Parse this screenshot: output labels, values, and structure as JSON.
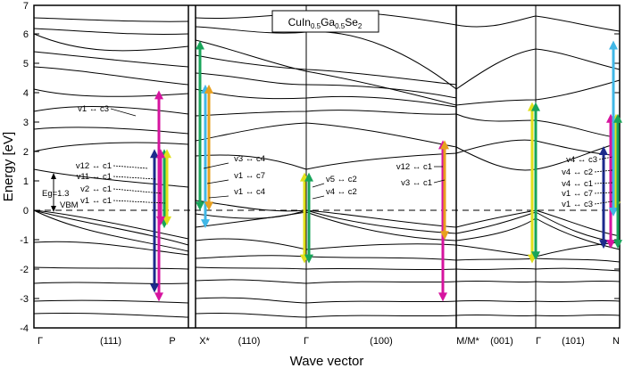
{
  "chart_data": {
    "type": "line",
    "title": "CuIn0.5Ga0.5Se2",
    "title_parts": {
      "a": "CuIn",
      "s1": "0.5",
      "b": "Ga",
      "s2": "0.5",
      "c": "Se",
      "s3": "2"
    },
    "xlabel": "Wave vector",
    "ylabel": "Energy [eV]",
    "ylim": [
      -4,
      7
    ],
    "y_ticks": [
      "-4",
      "-3",
      "-2",
      "-1",
      "0",
      "1",
      "2",
      "3",
      "4",
      "5",
      "6",
      "7"
    ],
    "x_ticks": [
      "Γ",
      "(111)",
      "P",
      "X*",
      "(110)",
      "Γ",
      "(100)",
      "M/M*",
      "(001)",
      "Γ",
      "(101)",
      "N"
    ],
    "panels": [
      {
        "from": "Γ",
        "to": "P",
        "direction": "(111)"
      },
      {
        "from": "X*",
        "to": "M/M*",
        "direction": "(110)/(100)"
      },
      {
        "from": "M/M*",
        "to": "N",
        "direction": "(001)/(101)"
      }
    ],
    "reference": {
      "gap_label": "Eg=1.3",
      "vbm_label": "VBM",
      "vbm_energy": 0,
      "gap": 1.3
    },
    "transition_labels": [
      "v1 ↔ c3",
      "v12 ↔ c1",
      "v11 ↔ c1",
      "v2 ↔ c1",
      "v1 ↔ c1",
      "v3 ↔ c4",
      "v1 ↔ c7",
      "v1 ↔ c4",
      "v5 ↔ c2",
      "v4 ↔ c2",
      "v12 ↔ c1",
      "v3 ↔ c1",
      "v4 ↔ c3",
      "v4 ↔ c2",
      "v4 ↔ c1",
      "v1 ↔ c7",
      "v1 ↔ c3"
    ],
    "transitions": [
      {
        "color": "#d6149f",
        "y1": -3.1,
        "y2": 4.1
      },
      {
        "color": "#1c2a8c",
        "y1": -2.8,
        "y2": 2.1
      },
      {
        "color": "#18a45a",
        "y1": -0.6,
        "y2": 2.1
      },
      {
        "color": "#e1e01a",
        "y1": -0.5,
        "y2": 2.1
      },
      {
        "color": "#d6149f",
        "y1": -0.5,
        "y2": 2.1
      },
      {
        "color": "#18a45a",
        "y1": 0.0,
        "y2": 5.8
      },
      {
        "color": "#41b7e6",
        "y1": -0.6,
        "y2": 4.3
      },
      {
        "color": "#e8a01f",
        "y1": 0.0,
        "y2": 4.3
      },
      {
        "color": "#e1e01a",
        "y1": -1.8,
        "y2": 1.3
      },
      {
        "color": "#18a45a",
        "y1": -1.8,
        "y2": 1.3
      },
      {
        "color": "#d6149f",
        "y1": -3.1,
        "y2": 2.4
      },
      {
        "color": "#e8a01f",
        "y1": -1.0,
        "y2": 2.4
      },
      {
        "color": "#e1e01a",
        "y1": -1.8,
        "y2": 3.7
      },
      {
        "color": "#18a45a",
        "y1": -1.7,
        "y2": 3.7
      },
      {
        "color": "#1c2a8c",
        "y1": -1.3,
        "y2": 2.2
      },
      {
        "color": "#d6149f",
        "y1": -1.3,
        "y2": 3.3
      },
      {
        "color": "#e1e01a",
        "y1": 0.0,
        "y2": 3.3
      },
      {
        "color": "#41b7e6",
        "y1": -0.2,
        "y2": 5.8
      },
      {
        "color": "#18a45a",
        "y1": -1.3,
        "y2": 3.3
      }
    ]
  }
}
